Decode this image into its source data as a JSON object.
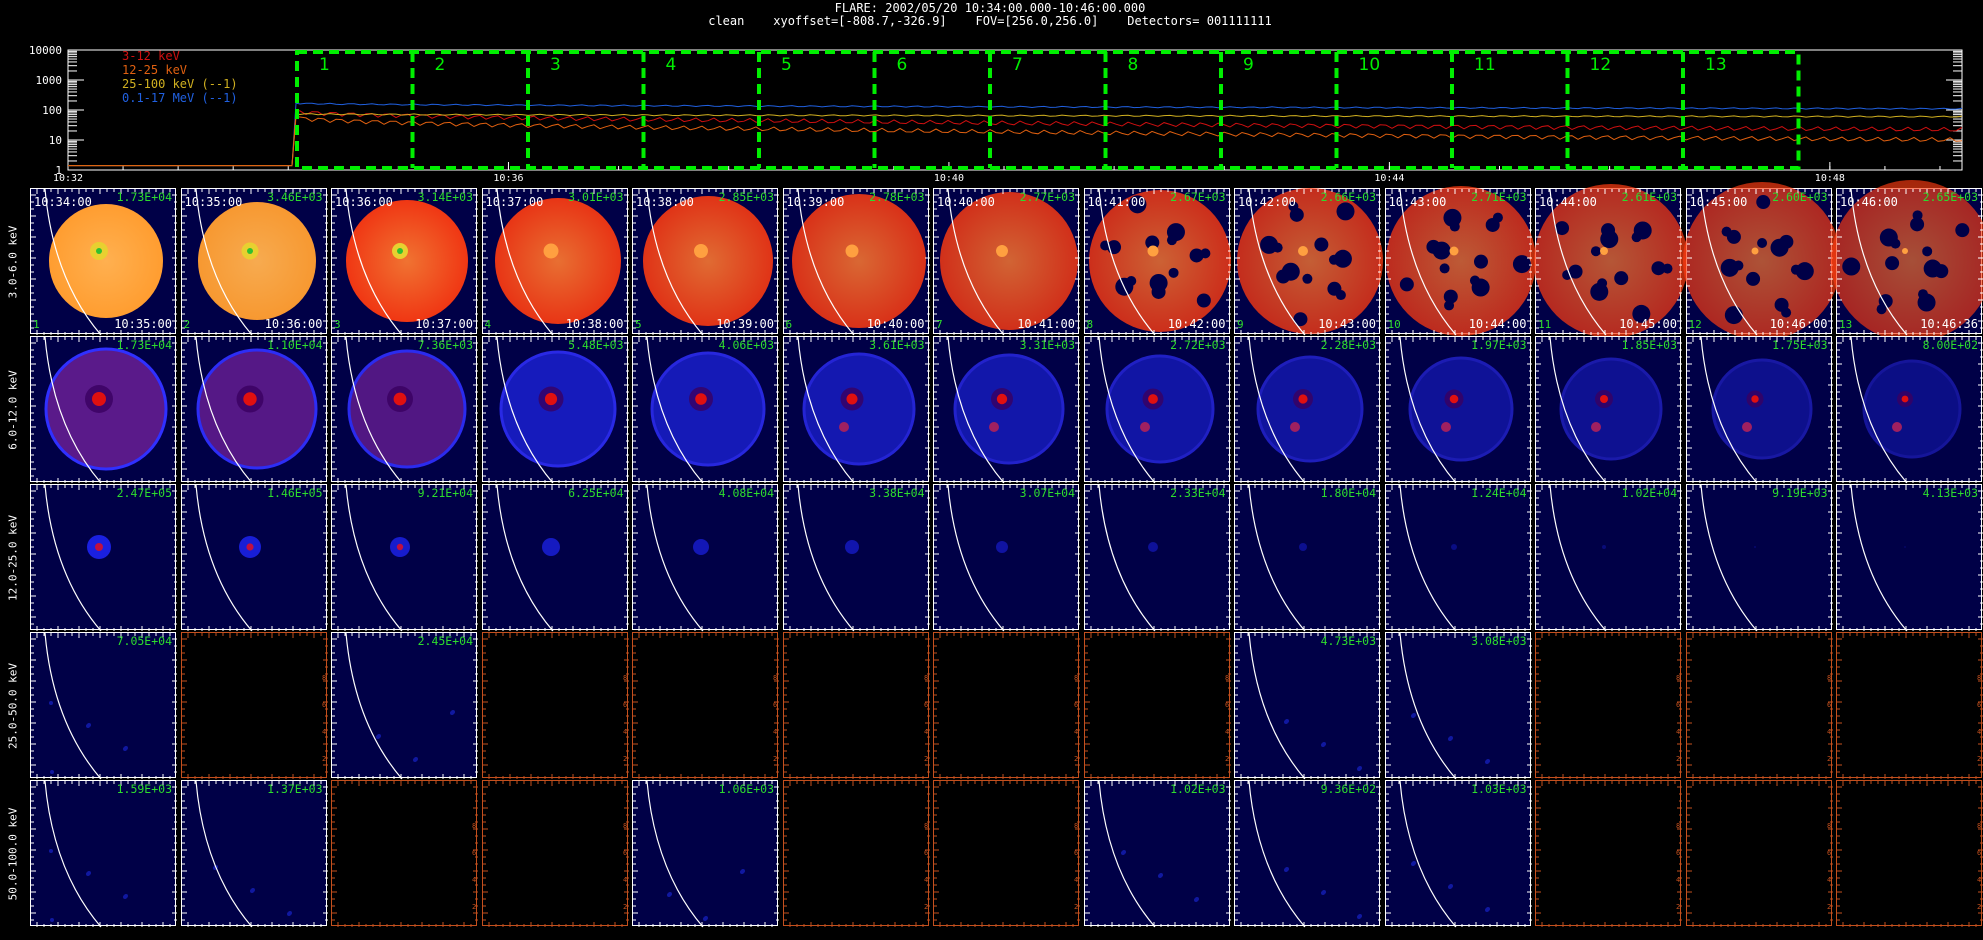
{
  "header": {
    "line1": "FLARE: 2002/05/20 10:34:00.000-10:46:00.000",
    "line2": "clean    xyoffset=[-808.7,-326.9]    FOV=[256.0,256.0]    Detectors= 001111111"
  },
  "lightcurve": {
    "y_ticks": [
      "10000",
      "1000",
      "100",
      "10",
      "1"
    ],
    "x_ticks": [
      "10:32",
      "10:36",
      "10:40",
      "10:44",
      "10:48"
    ],
    "legend": [
      {
        "label": "3-12 keV",
        "color": "#d01010"
      },
      {
        "label": "12-25 keV",
        "color": "#e06010"
      },
      {
        "label": "25-100 keV (--1)",
        "color": "#d0b020"
      },
      {
        "label": "0.1-17 MeV (--1)",
        "color": "#2060e0"
      }
    ],
    "intervals": [
      "1",
      "2",
      "3",
      "4",
      "5",
      "6",
      "7",
      "8",
      "9",
      "10",
      "11",
      "12",
      "13"
    ],
    "interval_color": "#00ee00"
  },
  "bands": [
    "3.0-6.0 keV",
    "6.0-12.0 keV",
    "12.0-25.0 keV",
    "25.0-50.0 keV",
    "50.0-100.0 keV"
  ],
  "times_start": [
    "10:34:00",
    "10:35:00",
    "10:36:00",
    "10:37:00",
    "10:38:00",
    "10:39:00",
    "10:40:00",
    "10:41:00",
    "10:42:00",
    "10:43:00",
    "10:44:00",
    "10:45:00",
    "10:46:00"
  ],
  "times_end": [
    "10:35:00",
    "10:36:00",
    "10:37:00",
    "10:38:00",
    "10:39:00",
    "10:40:00",
    "10:41:00",
    "10:42:00",
    "10:43:00",
    "10:44:00",
    "10:45:00",
    "10:46:00",
    "10:46:36"
  ],
  "frame_numbers": [
    "1",
    "2",
    "3",
    "4",
    "5",
    "6",
    "7",
    "8",
    "9",
    "10",
    "11",
    "12",
    "13"
  ],
  "peaks": [
    [
      "1.73E+04",
      "3.46E+03",
      "3.14E+03",
      "3.01E+03",
      "2.85E+03",
      "2.78E+03",
      "2.77E+03",
      "2.67E+03",
      "2.66E+03",
      "2.71E+03",
      "2.61E+03",
      "2.60E+03",
      "2.65E+03"
    ],
    [
      "1.73E+04",
      "1.10E+04",
      "7.36E+03",
      "5.48E+03",
      "4.06E+03",
      "3.61E+03",
      "3.31E+03",
      "2.72E+03",
      "2.28E+03",
      "1.97E+03",
      "1.85E+03",
      "1.75E+03",
      "8.00E+02"
    ],
    [
      "2.47E+05",
      "1.46E+05",
      "9.21E+04",
      "6.25E+04",
      "4.08E+04",
      "3.38E+04",
      "3.07E+04",
      "2.33E+04",
      "1.80E+04",
      "1.24E+04",
      "1.02E+04",
      "9.19E+03",
      "4.13E+03"
    ],
    [
      "7.05E+04",
      "",
      "2.45E+04",
      "",
      "",
      "",
      "",
      "",
      "4.73E+03",
      "3.08E+03",
      "",
      "",
      ""
    ],
    [
      "1.59E+03",
      "1.37E+03",
      "",
      "",
      "1.06E+03",
      "",
      "",
      "1.02E+03",
      "9.36E+02",
      "1.03E+03",
      "",
      "",
      ""
    ]
  ],
  "colors": {
    "band1": "#ff4a10",
    "band2": "#1a1aff",
    "green": "#2ddc2d",
    "empty_axis": "#c4501e"
  }
}
